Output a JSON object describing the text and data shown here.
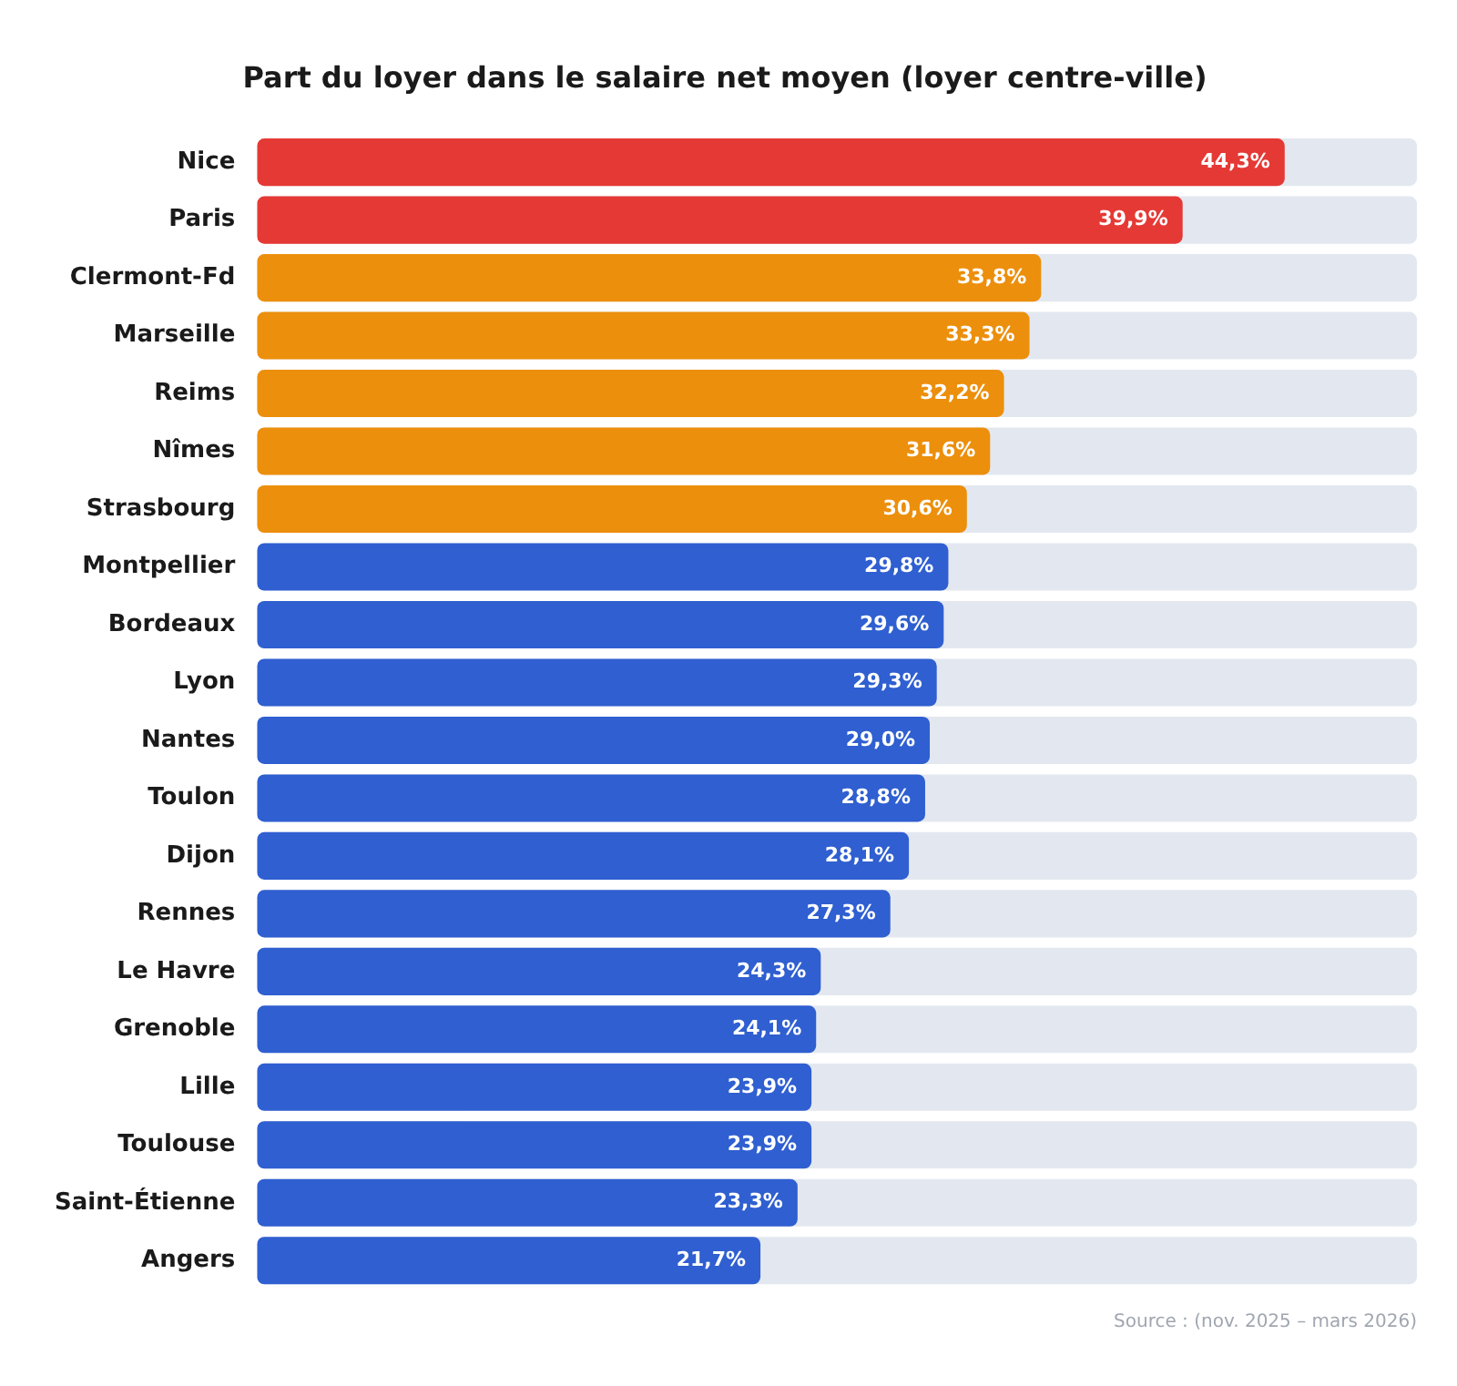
{
  "chart_data": {
    "type": "bar",
    "orientation": "horizontal",
    "title": "Part du loyer dans le salaire net moyen (loyer centre-ville)",
    "categories": [
      "Nice",
      "Paris",
      "Clermont-Fd",
      "Marseille",
      "Reims",
      "Nîmes",
      "Strasbourg",
      "Montpellier",
      "Bordeaux",
      "Lyon",
      "Nantes",
      "Toulon",
      "Dijon",
      "Rennes",
      "Le Havre",
      "Grenoble",
      "Lille",
      "Toulouse",
      "Saint-Étienne",
      "Angers"
    ],
    "values": [
      44.3,
      39.9,
      33.8,
      33.3,
      32.2,
      31.6,
      30.6,
      29.8,
      29.6,
      29.3,
      29.0,
      28.8,
      28.1,
      27.3,
      24.3,
      24.1,
      23.9,
      23.9,
      23.3,
      21.7
    ],
    "colors": [
      "#e53935",
      "#e53935",
      "#ec8f0c",
      "#ec8f0c",
      "#ec8f0c",
      "#ec8f0c",
      "#ec8f0c",
      "#2f5fd0",
      "#2f5fd0",
      "#2f5fd0",
      "#2f5fd0",
      "#2f5fd0",
      "#2f5fd0",
      "#2f5fd0",
      "#2f5fd0",
      "#2f5fd0",
      "#2f5fd0",
      "#2f5fd0",
      "#2f5fd0",
      "#2f5fd0"
    ],
    "value_labels": [
      "44,3%",
      "39,9%",
      "33,8%",
      "33,3%",
      "32,2%",
      "31,6%",
      "30,6%",
      "29,8%",
      "29,6%",
      "29,3%",
      "29,0%",
      "28,8%",
      "28,1%",
      "27,3%",
      "24,3%",
      "24,1%",
      "23,9%",
      "23,9%",
      "23,3%",
      "21,7%"
    ],
    "xlim": [
      0,
      50
    ],
    "tick_labels": "y",
    "legend": false,
    "annotations": [
      "Source : (nov. 2025 – mars 2026)"
    ]
  }
}
